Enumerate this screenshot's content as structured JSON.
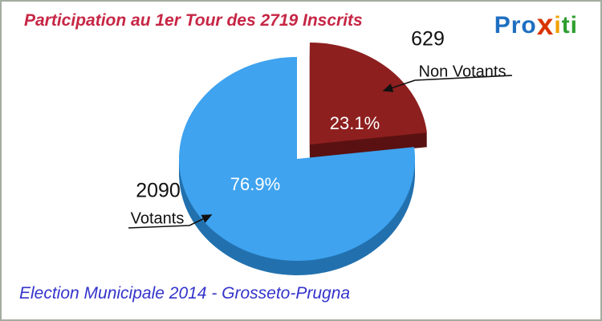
{
  "title": "Participation au 1er Tour des 2719 Inscrits",
  "footer": "Election Municipale 2014 - Grosseto-Prugna",
  "colors": {
    "title": "#c72645",
    "footer": "#3333cc",
    "callout_text": "#111111",
    "percent_text": "#ffffff"
  },
  "logo": {
    "name": "proxiti",
    "letters": [
      {
        "char": "P",
        "color": "#1e6fc0"
      },
      {
        "char": "r",
        "color": "#1e6fc0"
      },
      {
        "char": "o",
        "color": "#1e6fc0"
      },
      {
        "char": "x",
        "color": "#d93400"
      },
      {
        "char": "i",
        "color": "#f0a000"
      },
      {
        "char": "t",
        "color": "#2f9e2f"
      },
      {
        "char": "i",
        "color": "#2f9e2f"
      }
    ]
  },
  "chart_data": {
    "type": "pie",
    "title": "Participation au 1er Tour des 2719 Inscrits",
    "total_inscrits": 2719,
    "start_angle_deg": -90,
    "direction": "clockwise",
    "effect_3d": true,
    "legend_position": "callouts",
    "slices": [
      {
        "label": "Votants",
        "value": 2090,
        "percent": 76.9,
        "percent_label": "76.9%",
        "color": "#3fa3ef",
        "side_color": "#2271ae",
        "exploded": false
      },
      {
        "label": "Non Votants",
        "value": 629,
        "percent": 23.1,
        "percent_label": "23.1%",
        "color": "#8e1f1f",
        "side_color": "#5a1111",
        "exploded": true
      }
    ]
  }
}
